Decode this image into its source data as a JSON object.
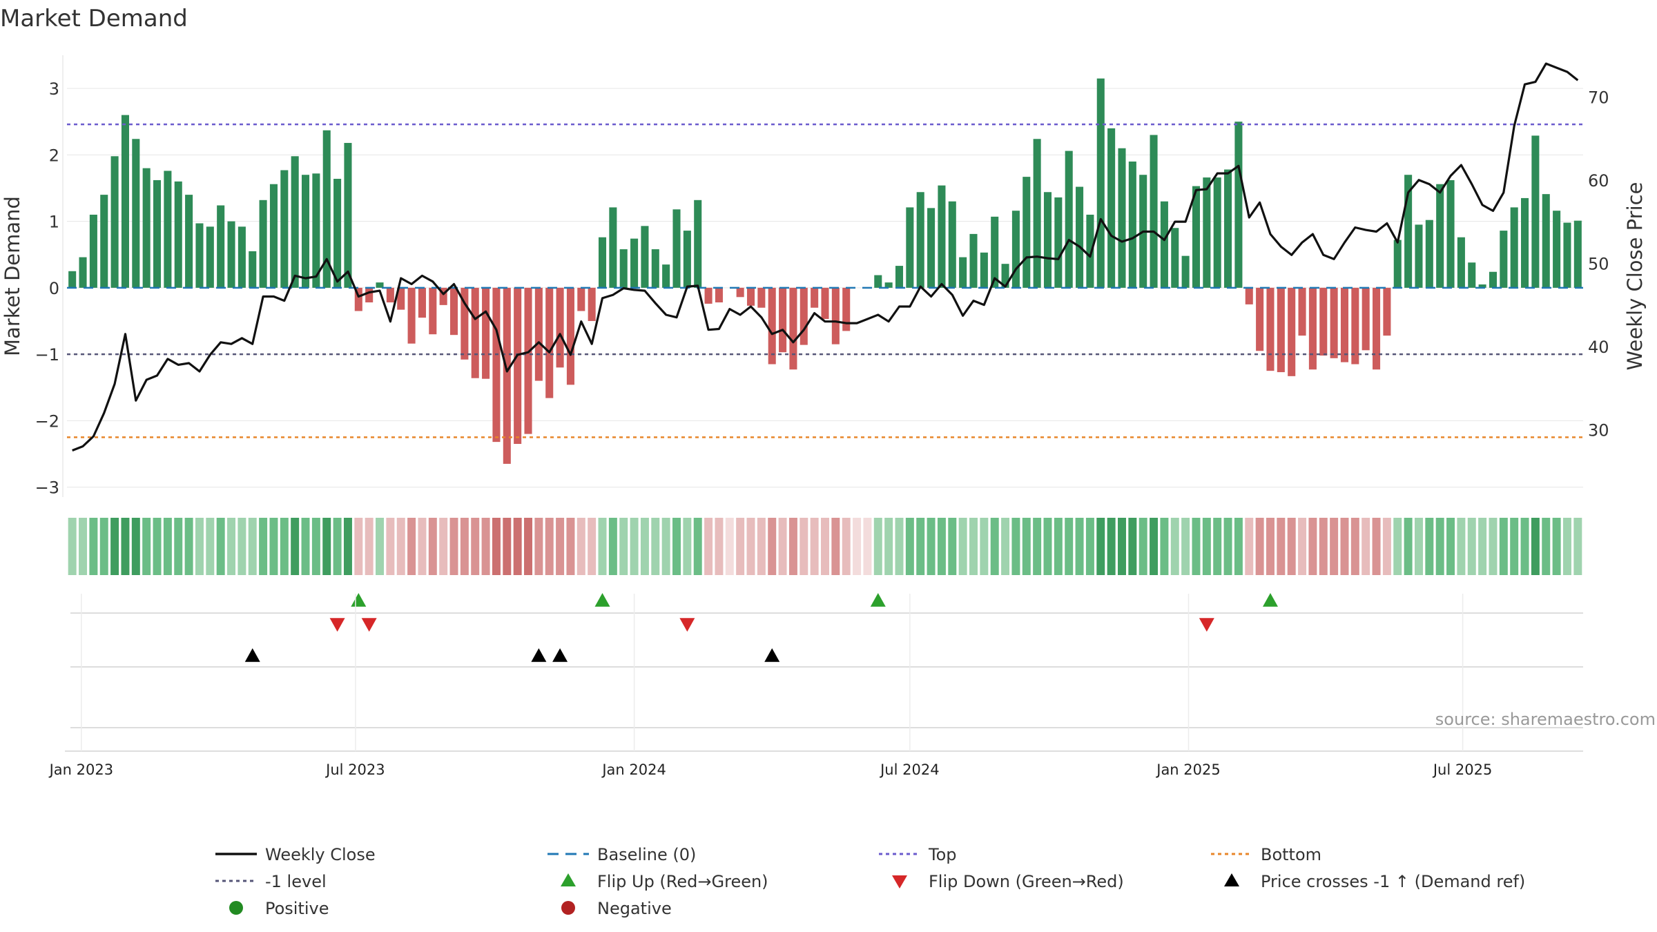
{
  "title": "Market Demand",
  "source_text": "source: sharemaestro.com",
  "chart_data": {
    "type": "bar",
    "title": "Market Demand",
    "ylabel_left": "Market Demand",
    "ylabel_right": "Weekly Close Price",
    "left_ylim": [
      -3.15,
      3.5
    ],
    "right_ylim": [
      21.9,
      75
    ],
    "left_ticks": [
      3,
      2,
      1,
      0,
      -1,
      -2,
      -3
    ],
    "left_tick_labels": [
      "3",
      "2",
      "1",
      "0",
      "−1",
      "−2",
      "−3"
    ],
    "right_ticks": [
      70,
      60,
      50,
      40,
      30
    ],
    "right_tick_labels": [
      "70",
      "60",
      "50",
      "40",
      "30"
    ],
    "x_start": "2022-12-26",
    "x_step_days": 7,
    "x_tick_labels": [
      "Jan 2023",
      "Jul 2023",
      "Jan 2024",
      "Jul 2024",
      "Jan 2025",
      "Jul 2025"
    ],
    "x_tick_dates": [
      "2023-01-01",
      "2023-07-01",
      "2024-01-01",
      "2024-07-01",
      "2025-01-01",
      "2025-07-01"
    ],
    "reference_lines": {
      "top": 2.46,
      "minus_one": -1.0,
      "bottom": -2.25,
      "baseline": 0.0
    },
    "demand": [
      0.25,
      0.46,
      1.1,
      1.4,
      1.98,
      2.6,
      2.24,
      1.8,
      1.62,
      1.76,
      1.6,
      1.4,
      0.97,
      0.92,
      1.24,
      1.0,
      0.92,
      0.55,
      1.32,
      1.56,
      1.77,
      1.98,
      1.7,
      1.72,
      2.37,
      1.64,
      2.18,
      -0.35,
      -0.22,
      0.08,
      -0.22,
      -0.33,
      -0.84,
      -0.45,
      -0.7,
      -0.26,
      -0.71,
      -1.08,
      -1.36,
      -1.37,
      -2.32,
      -2.65,
      -2.35,
      -2.2,
      -1.4,
      -1.66,
      -1.2,
      -1.46,
      -0.35,
      -0.5,
      0.76,
      1.21,
      0.58,
      0.74,
      0.93,
      0.58,
      0.35,
      1.18,
      0.86,
      1.32,
      -0.24,
      -0.22,
      0,
      -0.14,
      -0.27,
      -0.3,
      -1.15,
      -0.97,
      -1.23,
      -0.86,
      -0.3,
      -0.47,
      -0.85,
      -0.65,
      0,
      0,
      0.19,
      0.08,
      0.33,
      1.21,
      1.44,
      1.2,
      1.54,
      1.3,
      0.46,
      0.81,
      0.53,
      1.07,
      0.36,
      1.16,
      1.67,
      2.24,
      1.44,
      1.36,
      2.06,
      1.52,
      1.1,
      3.15,
      2.4,
      2.1,
      1.9,
      1.7,
      2.3,
      1.3,
      0.9,
      0.48,
      1.53,
      1.66,
      1.66,
      1.78,
      2.5,
      -0.25,
      -0.95,
      -1.25,
      -1.27,
      -1.33,
      -0.72,
      -1.23,
      -1.02,
      -1.06,
      -1.12,
      -1.15,
      -0.94,
      -1.23,
      -0.72,
      0.72,
      1.7,
      0.95,
      1.02,
      1.56,
      1.62,
      0.76,
      0.38,
      0.05,
      0.24,
      0.86,
      1.21,
      1.35,
      2.29,
      1.41,
      1.16,
      0.98,
      1.01
    ],
    "weekly_close": [
      27.5,
      28.0,
      29.2,
      32.0,
      35.5,
      41.5,
      33.5,
      36.0,
      36.5,
      38.5,
      37.8,
      38.0,
      37.0,
      39.0,
      40.5,
      40.3,
      41.0,
      40.3,
      46.0,
      46.0,
      45.5,
      48.5,
      48.2,
      48.4,
      50.5,
      47.8,
      49.0,
      46.0,
      46.5,
      46.7,
      43.0,
      48.2,
      47.5,
      48.5,
      47.8,
      46.3,
      47.5,
      45.2,
      43.3,
      44.2,
      42.0,
      37.0,
      39.0,
      39.3,
      40.5,
      39.3,
      41.5,
      39.0,
      43.0,
      40.3,
      45.8,
      46.2,
      47.0,
      46.8,
      46.7,
      45.2,
      43.8,
      43.5,
      47.2,
      47.3,
      42.0,
      42.1,
      44.5,
      43.8,
      44.8,
      43.5,
      41.5,
      42.0,
      40.5,
      42.0,
      44.0,
      43.0,
      43.0,
      42.8,
      42.8,
      43.3,
      43.8,
      43.0,
      44.8,
      44.8,
      47.2,
      46.0,
      47.5,
      46.2,
      43.7,
      45.5,
      45.0,
      48.2,
      47.2,
      49.3,
      50.7,
      50.8,
      50.6,
      50.5,
      52.8,
      52.0,
      50.8,
      55.3,
      53.3,
      52.6,
      53.0,
      53.8,
      53.8,
      52.8,
      55.0,
      55.0,
      58.8,
      58.9,
      60.8,
      60.8,
      61.7,
      55.5,
      57.3,
      53.5,
      52.0,
      51.0,
      52.5,
      53.5,
      51.0,
      50.5,
      52.5,
      54.3,
      54.0,
      53.8,
      54.8,
      52.5,
      58.5,
      60.0,
      59.5,
      58.5,
      60.5,
      61.8,
      59.5,
      57.0,
      56.3,
      58.5,
      66.5,
      71.5,
      71.8,
      74.0,
      73.5,
      73.0,
      72.0
    ],
    "shade_levels": [
      1,
      1,
      2,
      2,
      3,
      3,
      3,
      2,
      2,
      2,
      2,
      2,
      1,
      1,
      2,
      1,
      1,
      1,
      2,
      2,
      2,
      3,
      2,
      2,
      3,
      2,
      3,
      1,
      1,
      1,
      1,
      1,
      2,
      1,
      2,
      1,
      2,
      2,
      2,
      2,
      3,
      3,
      3,
      3,
      2,
      2,
      2,
      2,
      1,
      1,
      1,
      2,
      1,
      1,
      1,
      1,
      1,
      2,
      1,
      2,
      1,
      1,
      1,
      1,
      1,
      1,
      2,
      1,
      2,
      1,
      1,
      1,
      2,
      1,
      1,
      1,
      1,
      1,
      1,
      2,
      2,
      2,
      2,
      2,
      1,
      1,
      1,
      2,
      1,
      2,
      2,
      2,
      2,
      2,
      2,
      2,
      2,
      3,
      3,
      3,
      3,
      2,
      3,
      2,
      1,
      1,
      2,
      2,
      2,
      2,
      2,
      1,
      2,
      2,
      2,
      2,
      1,
      2,
      2,
      2,
      2,
      2,
      1,
      2,
      1,
      1,
      2,
      1,
      2,
      2,
      2,
      1,
      1,
      1,
      1,
      2,
      2,
      2,
      3,
      2,
      2,
      1,
      1
    ],
    "flip_up_weeks": [
      27,
      50,
      76,
      113
    ],
    "flip_down_weeks": [
      25,
      28,
      58,
      107
    ],
    "price_cross_weeks": [
      17,
      44,
      46,
      66
    ],
    "legend": [
      {
        "label": "Weekly Close",
        "symbol": "solid-line",
        "color": "#111111"
      },
      {
        "label": "Baseline (0)",
        "symbol": "dashed-line",
        "color": "#1f77b4"
      },
      {
        "label": "Top",
        "symbol": "dotted-line",
        "color": "#6a5acd"
      },
      {
        "label": "Bottom",
        "symbol": "dotted-line",
        "color": "#e8862a"
      },
      {
        "label": "-1 level",
        "symbol": "dotted-line",
        "color": "#555577"
      },
      {
        "label": "Flip Up (Red→Green)",
        "symbol": "triangle-up",
        "color": "#2ca02c"
      },
      {
        "label": "Flip Down (Green→Red)",
        "symbol": "triangle-down",
        "color": "#d62728"
      },
      {
        "label": "Price crosses -1 ↑ (Demand ref)",
        "symbol": "triangle-up",
        "color": "#000000"
      },
      {
        "label": "Positive",
        "symbol": "circle",
        "color": "#228b22"
      },
      {
        "label": "Negative",
        "symbol": "circle",
        "color": "#b22222"
      }
    ]
  },
  "colors": {
    "positive_bar": "#2e8b57",
    "negative_bar": "#cd5c5c",
    "close_line": "#111111",
    "baseline": "#1f77b4",
    "top": "#6a5acd",
    "bottom": "#e8862a",
    "minus_one": "#555577",
    "flip_up": "#2ca02c",
    "flip_down": "#d62728",
    "price_cross": "#000000",
    "grid": "#e6e6e6",
    "pos_shades": [
      "#c6e6cf",
      "#9fd3ae",
      "#6bbd86",
      "#3f9d5f"
    ],
    "neg_shades": [
      "#f3dcdc",
      "#e7bcbc",
      "#d99393",
      "#cc7070"
    ]
  }
}
